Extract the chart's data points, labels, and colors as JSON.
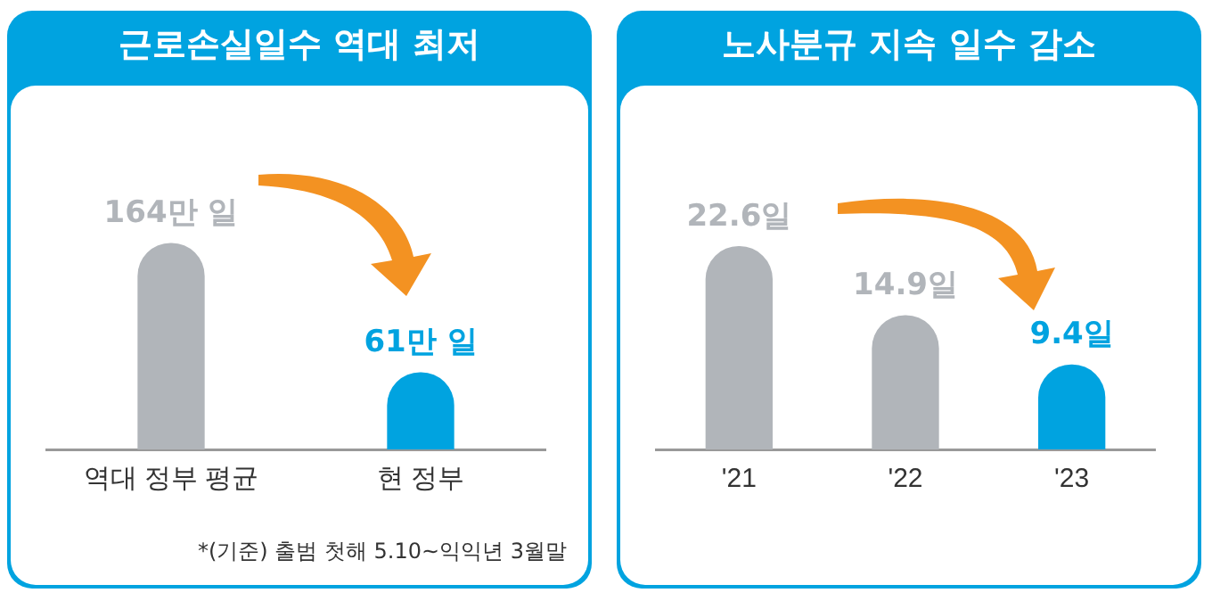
{
  "chart_data": [
    {
      "type": "bar",
      "title": "근로손실일수 역대 최저",
      "categories": [
        "역대 정부 평균",
        "현 정부"
      ],
      "values": [
        164,
        61
      ],
      "colors": [
        "#b1b5ba",
        "#00a3e0"
      ],
      "value_labels": [
        "164만 일",
        "61만 일"
      ],
      "tick_labels": "x",
      "legend": false,
      "annotations": [
        "*(기준) 출범 첫해 5.10~익익년 3월말"
      ]
    },
    {
      "type": "bar",
      "title": "노사분규 지속 일수 감소",
      "categories": [
        "'21",
        "'22",
        "'23"
      ],
      "values": [
        22.6,
        14.9,
        9.4
      ],
      "colors": [
        "#b1b5ba",
        "#b1b5ba",
        "#00a3e0"
      ],
      "value_labels": [
        "22.6일",
        "14.9일",
        "9.4일"
      ],
      "tick_labels": "x",
      "legend": false
    }
  ]
}
